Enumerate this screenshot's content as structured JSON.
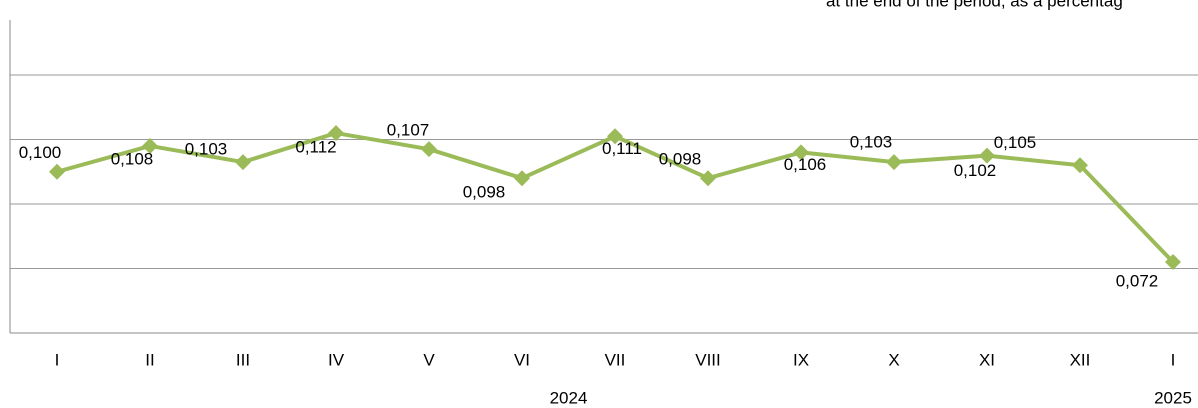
{
  "chart_data": {
    "type": "line",
    "title": "at the end of the period, as a percentag",
    "categories": [
      "I",
      "II",
      "III",
      "IV",
      "V",
      "VI",
      "VII",
      "VIII",
      "IX",
      "X",
      "XI",
      "XII",
      "I"
    ],
    "group_labels": [
      "2024",
      "2025"
    ],
    "values": [
      0.1,
      0.108,
      0.103,
      0.112,
      0.107,
      0.098,
      0.111,
      0.098,
      0.106,
      0.103,
      0.105,
      0.102,
      0.072
    ],
    "value_labels": [
      "0,100",
      "0,108",
      "0,103",
      "0,112",
      "0,107",
      "0,098",
      "0,111",
      "0,098",
      "0,106",
      "0,103",
      "0,105",
      "0,102",
      "0,072"
    ],
    "color": "#9bbb59",
    "ylim": [
      0.05,
      0.15
    ],
    "yticks": [
      0.05,
      0.07,
      0.09,
      0.11,
      0.13
    ],
    "grid": true
  }
}
